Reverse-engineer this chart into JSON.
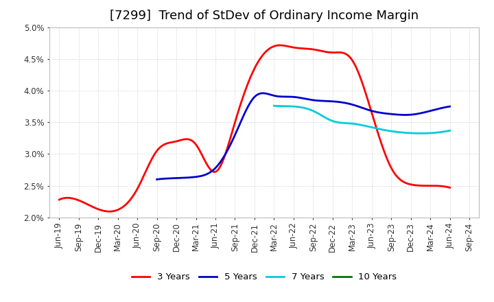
{
  "title": "[7299]  Trend of StDev of Ordinary Income Margin",
  "ylim": [
    0.02,
    0.05
  ],
  "yticks": [
    0.02,
    0.025,
    0.03,
    0.035,
    0.04,
    0.045,
    0.05
  ],
  "ytick_labels": [
    "2.0%",
    "2.5%",
    "3.0%",
    "3.5%",
    "4.0%",
    "4.5%",
    "5.0%"
  ],
  "x_labels": [
    "Jun-19",
    "Sep-19",
    "Dec-19",
    "Mar-20",
    "Jun-20",
    "Sep-20",
    "Dec-20",
    "Mar-21",
    "Jun-21",
    "Sep-21",
    "Dec-21",
    "Mar-22",
    "Jun-22",
    "Sep-22",
    "Dec-22",
    "Mar-23",
    "Jun-23",
    "Sep-23",
    "Dec-23",
    "Mar-24",
    "Jun-24",
    "Sep-24"
  ],
  "series": {
    "3 Years": {
      "color": "#FF0000",
      "values": [
        0.0228,
        0.0227,
        0.0213,
        0.0212,
        0.0245,
        0.0305,
        0.032,
        0.0315,
        0.0272,
        0.035,
        0.0435,
        0.047,
        0.0468,
        0.0465,
        0.046,
        0.0448,
        0.0365,
        0.0278,
        0.0252,
        0.025,
        0.0247,
        null
      ]
    },
    "5 Years": {
      "color": "#0000CC",
      "values": [
        null,
        null,
        null,
        null,
        null,
        0.026,
        0.0262,
        0.0264,
        0.0278,
        0.033,
        0.039,
        0.0392,
        0.039,
        0.0385,
        0.0383,
        0.0378,
        0.0368,
        0.0363,
        0.0362,
        0.0368,
        0.0375,
        null
      ]
    },
    "7 Years": {
      "color": "#00CCDD",
      "values": [
        null,
        null,
        null,
        null,
        null,
        null,
        null,
        null,
        null,
        null,
        null,
        0.0376,
        0.0375,
        0.0368,
        0.0352,
        0.0348,
        0.0342,
        0.0336,
        0.0333,
        0.0333,
        0.0337,
        null
      ]
    },
    "10 Years": {
      "color": "#007700",
      "values": [
        null,
        null,
        null,
        null,
        null,
        null,
        null,
        null,
        null,
        null,
        null,
        null,
        null,
        null,
        null,
        null,
        null,
        null,
        null,
        null,
        null,
        null
      ]
    }
  },
  "legend_order": [
    "3 Years",
    "5 Years",
    "7 Years",
    "10 Years"
  ],
  "background_color": "#FFFFFF",
  "plot_bg_color": "#FFFFFF",
  "grid_color": "#AAAAAA",
  "title_fontsize": 13,
  "tick_fontsize": 8.5
}
